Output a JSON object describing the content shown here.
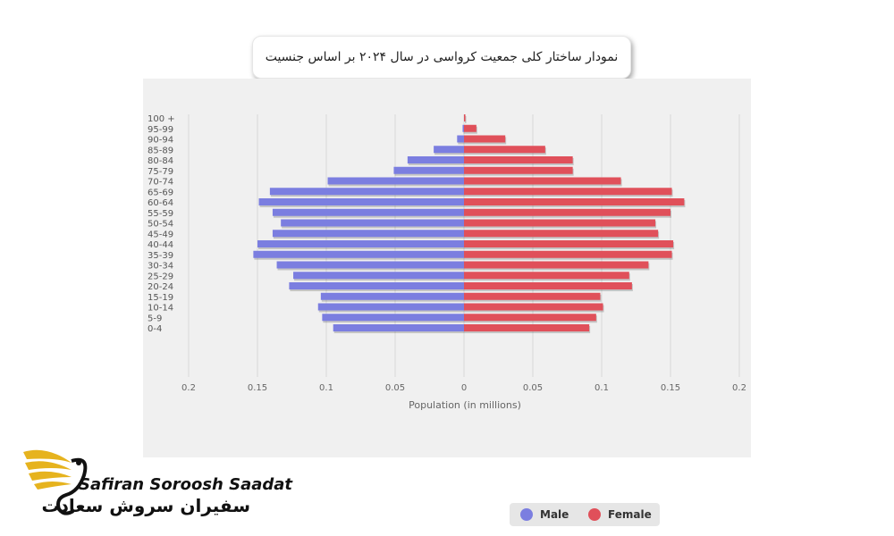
{
  "title": "نمودار ساختار کلی جمعیت کرواسی در سال ۲۰۲۴ بر اساس جنسیت",
  "brand": {
    "name_en": "Safiran Soroosh Saadat",
    "name_fa": "سفیران سروش سعادت"
  },
  "colors": {
    "male": "#7b7ee0",
    "female": "#e0505a",
    "gold": "#e6b31e"
  },
  "chart_data": {
    "type": "bar",
    "orientation": "horizontal-pyramid",
    "categories": [
      "100 +",
      "95-99",
      "90-94",
      "85-89",
      "80-84",
      "75-79",
      "70-74",
      "65-69",
      "60-64",
      "55-59",
      "50-54",
      "45-49",
      "40-44",
      "35-39",
      "30-34",
      "25-29",
      "20-24",
      "15-19",
      "10-14",
      "5-9",
      "0-4"
    ],
    "series": [
      {
        "name": "Male",
        "values": [
          0.0,
          0.001,
          0.005,
          0.022,
          0.041,
          0.051,
          0.099,
          0.141,
          0.149,
          0.139,
          0.133,
          0.139,
          0.15,
          0.153,
          0.136,
          0.124,
          0.127,
          0.104,
          0.106,
          0.103,
          0.095
        ]
      },
      {
        "name": "Female",
        "values": [
          0.001,
          0.009,
          0.03,
          0.059,
          0.079,
          0.079,
          0.114,
          0.151,
          0.16,
          0.15,
          0.139,
          0.141,
          0.152,
          0.151,
          0.134,
          0.12,
          0.122,
          0.099,
          0.101,
          0.096,
          0.091
        ]
      }
    ],
    "xlabel": "Population (in millions)",
    "xticks": [
      "0.2",
      "0.15",
      "0.1",
      "0.05",
      "0",
      "0.05",
      "0.1",
      "0.15",
      "0.2"
    ],
    "xlim": [
      -0.2,
      0.2
    ],
    "grid": true,
    "legend": "bottom-center"
  }
}
